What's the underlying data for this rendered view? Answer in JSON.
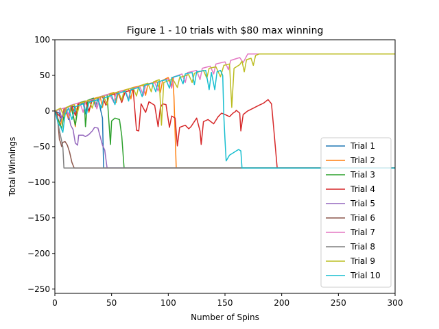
{
  "chart_data": {
    "type": "line",
    "title": "Figure 1 - 10 trials with $80 max winning",
    "xlabel": "Number of Spins",
    "ylabel": "Total Winnings",
    "xlim": [
      0,
      300
    ],
    "ylim": [
      -256,
      100
    ],
    "xticks": [
      0,
      50,
      100,
      150,
      200,
      250,
      300
    ],
    "yticks": [
      -250,
      -200,
      -150,
      -100,
      -50,
      0,
      50,
      100
    ],
    "xtick_labels": [
      "0",
      "50",
      "100",
      "150",
      "200",
      "250",
      "300"
    ],
    "ytick_labels": [
      "−250",
      "−200",
      "−150",
      "−100",
      "−50",
      "0",
      "50",
      "100"
    ],
    "grid": false,
    "legend_position": "lower-right",
    "series": [
      {
        "name": "Trial 1",
        "color": "#1f77b4",
        "points": [
          [
            0,
            0
          ],
          [
            4,
            -3
          ],
          [
            5,
            -15
          ],
          [
            8,
            -4
          ],
          [
            10,
            2
          ],
          [
            12,
            -12
          ],
          [
            14,
            4
          ],
          [
            17,
            7
          ],
          [
            19,
            -6
          ],
          [
            21,
            8
          ],
          [
            25,
            11
          ],
          [
            27,
            -4
          ],
          [
            29,
            13
          ],
          [
            34,
            16
          ],
          [
            36,
            6
          ],
          [
            38,
            18
          ],
          [
            42,
            -10
          ],
          [
            43,
            -80
          ],
          [
            300,
            -80
          ]
        ]
      },
      {
        "name": "Trial 2",
        "color": "#ff7f0e",
        "points": [
          [
            0,
            0
          ],
          [
            5,
            -20
          ],
          [
            8,
            4
          ],
          [
            12,
            -10
          ],
          [
            15,
            6
          ],
          [
            18,
            -22
          ],
          [
            20,
            10
          ],
          [
            28,
            14
          ],
          [
            30,
            -2
          ],
          [
            33,
            17
          ],
          [
            40,
            20
          ],
          [
            42,
            5
          ],
          [
            44,
            22
          ],
          [
            52,
            26
          ],
          [
            54,
            12
          ],
          [
            56,
            27
          ],
          [
            65,
            31
          ],
          [
            67,
            17
          ],
          [
            69,
            33
          ],
          [
            78,
            36
          ],
          [
            80,
            22
          ],
          [
            82,
            38
          ],
          [
            90,
            41
          ],
          [
            93,
            26
          ],
          [
            95,
            43
          ],
          [
            100,
            47
          ],
          [
            103,
            35
          ],
          [
            104,
            47
          ],
          [
            105,
            20
          ],
          [
            107,
            -80
          ],
          [
            300,
            -80
          ]
        ]
      },
      {
        "name": "Trial 3",
        "color": "#2ca02c",
        "points": [
          [
            0,
            0
          ],
          [
            6,
            -25
          ],
          [
            9,
            3
          ],
          [
            14,
            8
          ],
          [
            18,
            -20
          ],
          [
            21,
            11
          ],
          [
            26,
            14
          ],
          [
            27,
            -22
          ],
          [
            29,
            15
          ],
          [
            34,
            18
          ],
          [
            37,
            4
          ],
          [
            40,
            20
          ],
          [
            46,
            23
          ],
          [
            49,
            -47
          ],
          [
            50,
            -14
          ],
          [
            53,
            -10
          ],
          [
            57,
            -12
          ],
          [
            59,
            -35
          ],
          [
            61,
            -80
          ],
          [
            300,
            -80
          ]
        ]
      },
      {
        "name": "Trial 4",
        "color": "#d62728",
        "points": [
          [
            0,
            0
          ],
          [
            6,
            -10
          ],
          [
            9,
            4
          ],
          [
            15,
            8
          ],
          [
            18,
            -6
          ],
          [
            21,
            10
          ],
          [
            27,
            14
          ],
          [
            30,
            0
          ],
          [
            33,
            16
          ],
          [
            42,
            20
          ],
          [
            45,
            8
          ],
          [
            48,
            22
          ],
          [
            56,
            25
          ],
          [
            59,
            12
          ],
          [
            62,
            27
          ],
          [
            69,
            30
          ],
          [
            72,
            -27
          ],
          [
            74,
            -28
          ],
          [
            76,
            10
          ],
          [
            80,
            -2
          ],
          [
            83,
            13
          ],
          [
            88,
            8
          ],
          [
            91,
            -22
          ],
          [
            93,
            5
          ],
          [
            95,
            10
          ],
          [
            98,
            9
          ],
          [
            101,
            -23
          ],
          [
            103,
            -7
          ],
          [
            106,
            -10
          ],
          [
            108,
            -49
          ],
          [
            110,
            -23
          ],
          [
            115,
            -20
          ],
          [
            118,
            -25
          ],
          [
            120,
            -22
          ],
          [
            125,
            -10
          ],
          [
            128,
            -28
          ],
          [
            129,
            -47
          ],
          [
            131,
            -15
          ],
          [
            135,
            -12
          ],
          [
            140,
            -18
          ],
          [
            144,
            -8
          ],
          [
            147,
            -3
          ],
          [
            150,
            -5
          ],
          [
            154,
            -8
          ],
          [
            157,
            -3
          ],
          [
            159,
            -1
          ],
          [
            160,
            1
          ],
          [
            163,
            -3
          ],
          [
            164,
            -28
          ],
          [
            166,
            -5
          ],
          [
            170,
            0
          ],
          [
            175,
            4
          ],
          [
            180,
            8
          ],
          [
            184,
            11
          ],
          [
            188,
            16
          ],
          [
            191,
            10
          ],
          [
            193,
            -25
          ],
          [
            196,
            -80
          ],
          [
            300,
            -80
          ]
        ]
      },
      {
        "name": "Trial 5",
        "color": "#9467bd",
        "points": [
          [
            0,
            0
          ],
          [
            4,
            2
          ],
          [
            6,
            -10
          ],
          [
            9,
            3
          ],
          [
            12,
            -4
          ],
          [
            14,
            -20
          ],
          [
            16,
            -26
          ],
          [
            18,
            -45
          ],
          [
            20,
            -48
          ],
          [
            21,
            -34
          ],
          [
            25,
            -34
          ],
          [
            27,
            -36
          ],
          [
            30,
            -33
          ],
          [
            33,
            -28
          ],
          [
            35,
            -23
          ],
          [
            38,
            -24
          ],
          [
            40,
            -36
          ],
          [
            42,
            -48
          ],
          [
            44,
            -55
          ],
          [
            46,
            -80
          ],
          [
            300,
            -80
          ]
        ]
      },
      {
        "name": "Trial 6",
        "color": "#8c564b",
        "points": [
          [
            0,
            0
          ],
          [
            2,
            -2
          ],
          [
            4,
            -40
          ],
          [
            5,
            -44
          ],
          [
            6,
            -50
          ],
          [
            7,
            -44
          ],
          [
            9,
            -43
          ],
          [
            11,
            -48
          ],
          [
            13,
            -58
          ],
          [
            15,
            -72
          ],
          [
            17,
            -80
          ],
          [
            300,
            -80
          ]
        ]
      },
      {
        "name": "Trial 7",
        "color": "#e377c2",
        "points": [
          [
            0,
            0
          ],
          [
            10,
            5
          ],
          [
            12,
            -7
          ],
          [
            14,
            8
          ],
          [
            22,
            12
          ],
          [
            25,
            -2
          ],
          [
            27,
            13
          ],
          [
            35,
            17
          ],
          [
            37,
            3
          ],
          [
            40,
            20
          ],
          [
            48,
            24
          ],
          [
            52,
            12
          ],
          [
            54,
            26
          ],
          [
            62,
            29
          ],
          [
            65,
            17
          ],
          [
            67,
            31
          ],
          [
            75,
            34
          ],
          [
            78,
            22
          ],
          [
            80,
            36
          ],
          [
            88,
            40
          ],
          [
            91,
            28
          ],
          [
            93,
            42
          ],
          [
            100,
            45
          ],
          [
            103,
            32
          ],
          [
            105,
            48
          ],
          [
            112,
            52
          ],
          [
            115,
            40
          ],
          [
            117,
            54
          ],
          [
            125,
            57
          ],
          [
            128,
            44
          ],
          [
            130,
            60
          ],
          [
            137,
            63
          ],
          [
            140,
            52
          ],
          [
            142,
            66
          ],
          [
            150,
            69
          ],
          [
            153,
            58
          ],
          [
            155,
            71
          ],
          [
            163,
            75
          ],
          [
            166,
            68
          ],
          [
            170,
            80
          ],
          [
            300,
            80
          ]
        ]
      },
      {
        "name": "Trial 8",
        "color": "#7f7f7f",
        "points": [
          [
            0,
            0
          ],
          [
            2,
            -10
          ],
          [
            3,
            -20
          ],
          [
            5,
            -35
          ],
          [
            7,
            -50
          ],
          [
            8,
            -80
          ],
          [
            300,
            -80
          ]
        ]
      },
      {
        "name": "Trial 9",
        "color": "#bcbd22",
        "points": [
          [
            0,
            0
          ],
          [
            5,
            4
          ],
          [
            8,
            -8
          ],
          [
            10,
            5
          ],
          [
            17,
            9
          ],
          [
            20,
            -2
          ],
          [
            22,
            11
          ],
          [
            30,
            15
          ],
          [
            33,
            4
          ],
          [
            35,
            17
          ],
          [
            43,
            21
          ],
          [
            46,
            9
          ],
          [
            48,
            23
          ],
          [
            56,
            27
          ],
          [
            59,
            15
          ],
          [
            61,
            29
          ],
          [
            69,
            33
          ],
          [
            72,
            21
          ],
          [
            74,
            35
          ],
          [
            82,
            39
          ],
          [
            85,
            27
          ],
          [
            87,
            41
          ],
          [
            92,
            44
          ],
          [
            94,
            -20
          ],
          [
            96,
            40
          ],
          [
            104,
            45
          ],
          [
            108,
            33
          ],
          [
            110,
            47
          ],
          [
            118,
            51
          ],
          [
            121,
            40
          ],
          [
            123,
            53
          ],
          [
            131,
            57
          ],
          [
            134,
            46
          ],
          [
            136,
            60
          ],
          [
            142,
            62
          ],
          [
            146,
            48
          ],
          [
            149,
            64
          ],
          [
            154,
            66
          ],
          [
            156,
            5
          ],
          [
            158,
            60
          ],
          [
            163,
            65
          ],
          [
            165,
            70
          ],
          [
            167,
            55
          ],
          [
            169,
            72
          ],
          [
            173,
            74
          ],
          [
            175,
            64
          ],
          [
            177,
            78
          ],
          [
            180,
            80
          ],
          [
            300,
            80
          ]
        ]
      },
      {
        "name": "Trial 10",
        "color": "#17becf",
        "points": [
          [
            0,
            0
          ],
          [
            3,
            -18
          ],
          [
            5,
            -22
          ],
          [
            7,
            -30
          ],
          [
            9,
            -5
          ],
          [
            12,
            4
          ],
          [
            15,
            -12
          ],
          [
            18,
            6
          ],
          [
            25,
            10
          ],
          [
            28,
            -4
          ],
          [
            30,
            12
          ],
          [
            38,
            16
          ],
          [
            41,
            4
          ],
          [
            43,
            18
          ],
          [
            50,
            22
          ],
          [
            53,
            9
          ],
          [
            55,
            24
          ],
          [
            62,
            28
          ],
          [
            65,
            14
          ],
          [
            67,
            30
          ],
          [
            74,
            33
          ],
          [
            77,
            20
          ],
          [
            79,
            36
          ],
          [
            86,
            39
          ],
          [
            89,
            27
          ],
          [
            91,
            41
          ],
          [
            98,
            44
          ],
          [
            101,
            32
          ],
          [
            103,
            47
          ],
          [
            110,
            50
          ],
          [
            113,
            38
          ],
          [
            115,
            52
          ],
          [
            121,
            54
          ],
          [
            123,
            37
          ],
          [
            125,
            55
          ],
          [
            133,
            57
          ],
          [
            136,
            30
          ],
          [
            138,
            54
          ],
          [
            141,
            30
          ],
          [
            143,
            55
          ],
          [
            146,
            57
          ],
          [
            148,
            50
          ],
          [
            149,
            -7
          ],
          [
            150,
            -40
          ],
          [
            151,
            -70
          ],
          [
            154,
            -62
          ],
          [
            157,
            -59
          ],
          [
            160,
            -56
          ],
          [
            162,
            -54
          ],
          [
            164,
            -56
          ],
          [
            165,
            -80
          ],
          [
            300,
            -80
          ]
        ]
      }
    ]
  }
}
